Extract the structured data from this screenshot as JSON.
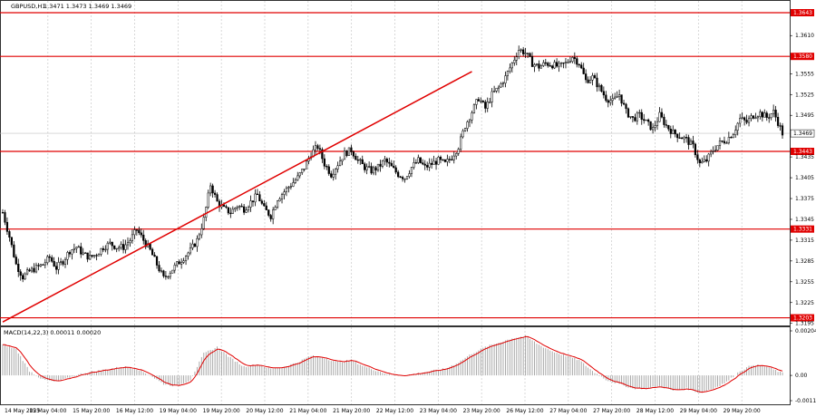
{
  "header": {
    "symbol": "GBPUSD,H1",
    "ohlc": "1.3471 1.3473 1.3469 1.3469"
  },
  "macd_header": "MACD(14,22,3) 0.00011 0.00020",
  "colors": {
    "level_line": "#e00000",
    "trend_line": "#e00000",
    "candle": "#000000",
    "grid": "#c8c8c8",
    "macd_hist": "#a0a0a0",
    "macd_signal": "#e00000"
  },
  "chart_data": [
    {
      "type": "candlestick",
      "title": "",
      "y_ticks": [
        "1.3643",
        "1.3610",
        "1.3580",
        "1.3555",
        "1.3525",
        "1.3495",
        "1.3469",
        "1.3443",
        "1.3435",
        "1.3405",
        "1.3375",
        "1.3345",
        "1.3331",
        "1.3315",
        "1.3285",
        "1.3255",
        "1.3225",
        "1.3203",
        "1.3195"
      ],
      "ylim": [
        1.3192,
        1.366
      ],
      "current_price": "1.3469",
      "x_ticks": [
        "14 May 2025",
        "15 May 04:00",
        "15 May 20:00",
        "16 May 12:00",
        "19 May 04:00",
        "19 May 20:00",
        "20 May 12:00",
        "21 May 04:00",
        "21 May 20:00",
        "22 May 12:00",
        "23 May 04:00",
        "23 May 20:00",
        "26 May 12:00",
        "27 May 04:00",
        "27 May 20:00",
        "28 May 12:00",
        "29 May 04:00",
        "29 May 20:00"
      ],
      "levels": [
        {
          "label": "1.3643",
          "value": 1.3643
        },
        {
          "label": "1.3580",
          "value": 1.358
        },
        {
          "label": "1.3443",
          "value": 1.3443
        },
        {
          "label": "1.3331",
          "value": 1.3331
        },
        {
          "label": "1.3203",
          "value": 1.3203
        }
      ],
      "trendline": [
        [
          0,
          1.3197
        ],
        [
          182,
          1.351
        ]
      ],
      "close_path": [
        [
          0,
          1.3355
        ],
        [
          3,
          1.332
        ],
        [
          6,
          1.328
        ],
        [
          9,
          1.3262
        ],
        [
          12,
          1.327
        ],
        [
          15,
          1.3275
        ],
        [
          18,
          1.328
        ],
        [
          21,
          1.329
        ],
        [
          24,
          1.3275
        ],
        [
          27,
          1.3285
        ],
        [
          30,
          1.33
        ],
        [
          33,
          1.3305
        ],
        [
          36,
          1.3295
        ],
        [
          39,
          1.329
        ],
        [
          42,
          1.3295
        ],
        [
          45,
          1.3305
        ],
        [
          48,
          1.331
        ],
        [
          51,
          1.3305
        ],
        [
          54,
          1.3305
        ],
        [
          57,
          1.3315
        ],
        [
          60,
          1.333
        ],
        [
          63,
          1.3315
        ],
        [
          66,
          1.33
        ],
        [
          69,
          1.328
        ],
        [
          72,
          1.326
        ],
        [
          75,
          1.327
        ],
        [
          78,
          1.328
        ],
        [
          81,
          1.329
        ],
        [
          84,
          1.33
        ],
        [
          87,
          1.3315
        ],
        [
          90,
          1.3345
        ],
        [
          93,
          1.3395
        ],
        [
          96,
          1.337
        ],
        [
          99,
          1.336
        ],
        [
          102,
          1.3355
        ],
        [
          105,
          1.3365
        ],
        [
          108,
          1.336
        ],
        [
          111,
          1.337
        ],
        [
          114,
          1.338
        ],
        [
          117,
          1.336
        ],
        [
          120,
          1.335
        ],
        [
          123,
          1.3375
        ],
        [
          126,
          1.3385
        ],
        [
          129,
          1.3395
        ],
        [
          132,
          1.3405
        ],
        [
          135,
          1.342
        ],
        [
          138,
          1.344
        ],
        [
          141,
          1.345
        ],
        [
          144,
          1.3425
        ],
        [
          147,
          1.341
        ],
        [
          150,
          1.3425
        ],
        [
          153,
          1.344
        ],
        [
          156,
          1.3445
        ],
        [
          159,
          1.343
        ],
        [
          162,
          1.342
        ],
        [
          165,
          1.3415
        ],
        [
          168,
          1.342
        ],
        [
          171,
          1.343
        ],
        [
          174,
          1.342
        ],
        [
          177,
          1.341
        ],
        [
          180,
          1.3405
        ],
        [
          183,
          1.342
        ],
        [
          186,
          1.343
        ],
        [
          189,
          1.342
        ],
        [
          192,
          1.3425
        ],
        [
          195,
          1.343
        ],
        [
          198,
          1.3425
        ],
        [
          201,
          1.3435
        ],
        [
          204,
          1.345
        ],
        [
          207,
          1.348
        ],
        [
          210,
          1.35
        ],
        [
          213,
          1.352
        ],
        [
          216,
          1.3505
        ],
        [
          219,
          1.3525
        ],
        [
          222,
          1.3535
        ],
        [
          225,
          1.355
        ],
        [
          228,
          1.357
        ],
        [
          231,
          1.359
        ],
        [
          234,
          1.3585
        ],
        [
          237,
          1.357
        ],
        [
          240,
          1.3565
        ],
        [
          243,
          1.357
        ],
        [
          246,
          1.3568
        ],
        [
          249,
          1.3565
        ],
        [
          252,
          1.357
        ],
        [
          255,
          1.358
        ],
        [
          258,
          1.357
        ],
        [
          261,
          1.3545
        ],
        [
          264,
          1.355
        ],
        [
          267,
          1.3535
        ],
        [
          270,
          1.352
        ],
        [
          273,
          1.3515
        ],
        [
          276,
          1.3525
        ],
        [
          279,
          1.35
        ],
        [
          282,
          1.349
        ],
        [
          285,
          1.3495
        ],
        [
          288,
          1.3485
        ],
        [
          291,
          1.3475
        ],
        [
          294,
          1.3495
        ],
        [
          297,
          1.348
        ],
        [
          300,
          1.347
        ],
        [
          303,
          1.3465
        ],
        [
          306,
          1.346
        ],
        [
          309,
          1.345
        ],
        [
          312,
          1.3425
        ],
        [
          315,
          1.343
        ],
        [
          318,
          1.3445
        ],
        [
          321,
          1.3455
        ],
        [
          324,
          1.346
        ],
        [
          327,
          1.347
        ],
        [
          330,
          1.349
        ],
        [
          333,
          1.3485
        ],
        [
          336,
          1.3495
        ],
        [
          339,
          1.3498
        ],
        [
          342,
          1.3492
        ],
        [
          345,
          1.35
        ],
        [
          347,
          1.3485
        ],
        [
          349,
          1.3469
        ]
      ],
      "macd": {
        "ylim": [
          -0.00116,
          0.00204
        ],
        "y_ticks": [
          "0.00204",
          "0.00",
          "-0.00116"
        ],
        "hist_path": [
          [
            0,
            0.0014
          ],
          [
            6,
            0.0012
          ],
          [
            12,
            0.0002
          ],
          [
            18,
            -0.0002
          ],
          [
            24,
            -0.0003
          ],
          [
            30,
            -0.0001
          ],
          [
            36,
            0.0001
          ],
          [
            42,
            0.0002
          ],
          [
            48,
            0.0003
          ],
          [
            54,
            0.0004
          ],
          [
            60,
            0.0003
          ],
          [
            66,
            0.0
          ],
          [
            72,
            -0.0004
          ],
          [
            78,
            -0.0005
          ],
          [
            84,
            -0.0002
          ],
          [
            90,
            0.001
          ],
          [
            96,
            0.0013
          ],
          [
            102,
            0.0008
          ],
          [
            108,
            0.0004
          ],
          [
            114,
            0.0005
          ],
          [
            120,
            0.0003
          ],
          [
            126,
            0.0004
          ],
          [
            132,
            0.0006
          ],
          [
            138,
            0.0009
          ],
          [
            144,
            0.0008
          ],
          [
            150,
            0.0006
          ],
          [
            156,
            0.0007
          ],
          [
            162,
            0.0004
          ],
          [
            168,
            0.0002
          ],
          [
            174,
            0.0
          ],
          [
            180,
            0.0
          ],
          [
            186,
            0.0001
          ],
          [
            192,
            0.0002
          ],
          [
            198,
            0.0003
          ],
          [
            204,
            0.0006
          ],
          [
            210,
            0.001
          ],
          [
            216,
            0.0013
          ],
          [
            222,
            0.0015
          ],
          [
            228,
            0.0017
          ],
          [
            234,
            0.0018
          ],
          [
            240,
            0.0014
          ],
          [
            246,
            0.0011
          ],
          [
            252,
            0.0009
          ],
          [
            258,
            0.0007
          ],
          [
            264,
            0.0002
          ],
          [
            270,
            -0.0002
          ],
          [
            276,
            -0.0004
          ],
          [
            282,
            -0.0006
          ],
          [
            288,
            -0.0006
          ],
          [
            294,
            -0.0005
          ],
          [
            300,
            -0.0007
          ],
          [
            306,
            -0.0006
          ],
          [
            312,
            -0.0008
          ],
          [
            318,
            -0.0006
          ],
          [
            324,
            -0.0003
          ],
          [
            330,
            0.0002
          ],
          [
            336,
            0.0005
          ],
          [
            342,
            0.0004
          ],
          [
            349,
            0.0001
          ]
        ]
      }
    }
  ]
}
